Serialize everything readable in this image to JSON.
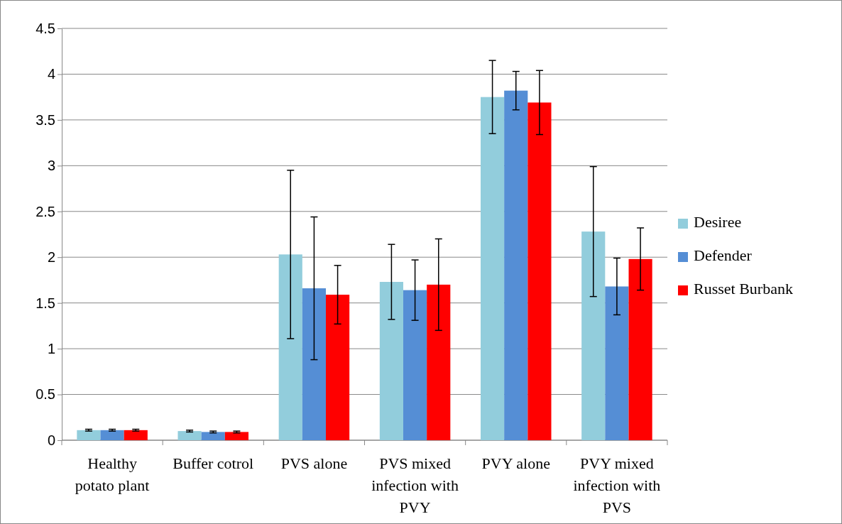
{
  "chart_data": {
    "type": "bar",
    "categories": [
      "Healthy potato plant",
      "Buffer cotrol",
      "PVS alone",
      "PVS mixed infection with PVY",
      "PVY alone",
      "PVY mixed infection with PVS"
    ],
    "series": [
      {
        "name": "Desiree",
        "color": "#92cddc",
        "values": [
          0.11,
          0.1,
          2.03,
          1.73,
          3.75,
          2.28
        ],
        "errors": [
          0.01,
          0.01,
          0.92,
          0.41,
          0.4,
          0.71
        ]
      },
      {
        "name": "Defender",
        "color": "#558ed5",
        "values": [
          0.11,
          0.09,
          1.66,
          1.64,
          3.82,
          1.68
        ],
        "errors": [
          0.01,
          0.01,
          0.78,
          0.33,
          0.21,
          0.31
        ]
      },
      {
        "name": "Russet Burbank",
        "color": "#ff0000",
        "values": [
          0.11,
          0.09,
          1.59,
          1.7,
          3.69,
          1.98
        ],
        "errors": [
          0.01,
          0.01,
          0.32,
          0.5,
          0.35,
          0.34
        ]
      }
    ],
    "ylim": [
      0,
      4.5
    ],
    "yticks": [
      {
        "value": 0,
        "label": "0"
      },
      {
        "value": 0.5,
        "label": "0.5"
      },
      {
        "value": 1,
        "label": "1"
      },
      {
        "value": 1.5,
        "label": "1.5"
      },
      {
        "value": 2,
        "label": "2"
      },
      {
        "value": 2.5,
        "label": "2.5"
      },
      {
        "value": 3,
        "label": "3"
      },
      {
        "value": 3.5,
        "label": "3.5"
      },
      {
        "value": 4,
        "label": "4"
      },
      {
        "value": 4.5,
        "label": "4.5"
      }
    ],
    "grid": "y",
    "legend": "right"
  }
}
